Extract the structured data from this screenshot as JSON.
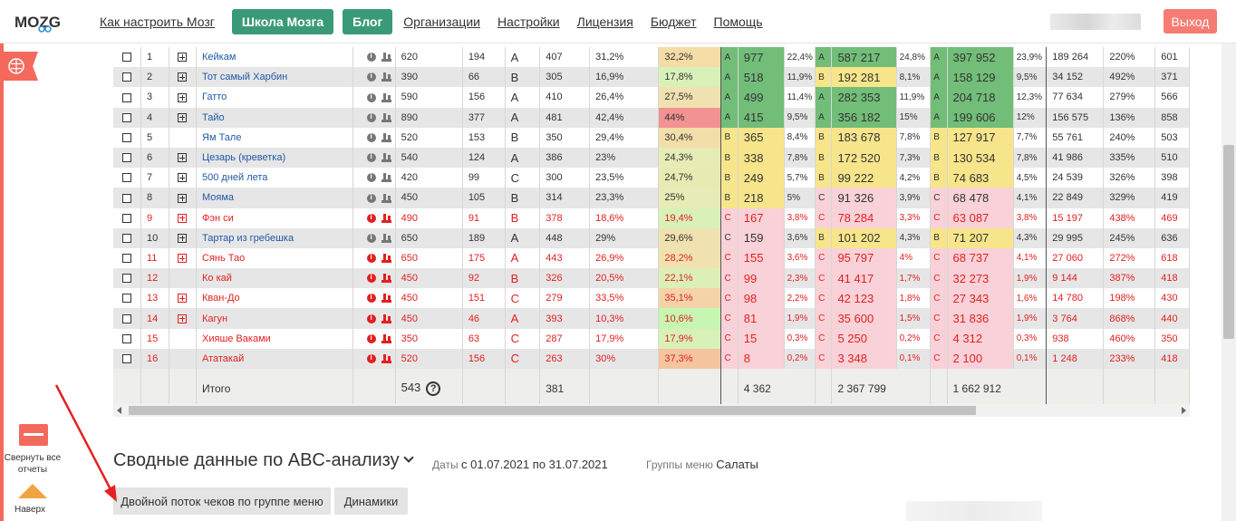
{
  "header": {
    "logo_text": "MOZG",
    "nav": [
      {
        "label": "Как настроить Мозг",
        "style": "link"
      },
      {
        "label": "Школа Мозга",
        "style": "pill"
      },
      {
        "label": "Блог",
        "style": "pill"
      },
      {
        "label": "Организации",
        "style": "link"
      },
      {
        "label": "Настройки",
        "style": "link"
      },
      {
        "label": "Лицензия",
        "style": "link"
      },
      {
        "label": "Бюджет",
        "style": "link"
      },
      {
        "label": "Помощь",
        "style": "link"
      }
    ],
    "logout_label": "Выход",
    "accent_color": "#f47c72",
    "pill_color": "#3a9a78"
  },
  "sidebar": {
    "collapse_label": "Свернуть все отчеты",
    "up_label": "Наверх"
  },
  "table": {
    "rows": [
      {
        "num": "1",
        "plus": true,
        "name": "Кейкам",
        "a": "620",
        "b": "194",
        "cls": "A",
        "c": "407",
        "d": "31,2%",
        "e": "32,2%",
        "eColor": "#f4dca6",
        "g1": "A",
        "v1": "977",
        "p1": "22,4%",
        "g2": "A",
        "v2": "587 217",
        "p2": "24,8%",
        "g3": "A",
        "v3": "397 952",
        "p3": "23,9%",
        "k": "189 264",
        "l": "220%",
        "m": "601",
        "red": false
      },
      {
        "num": "2",
        "plus": true,
        "name": "Тот самый Харбин",
        "a": "390",
        "b": "66",
        "cls": "B",
        "c": "305",
        "d": "16,9%",
        "e": "17,8%",
        "eColor": "#d8f1b8",
        "g1": "A",
        "v1": "518",
        "p1": "11,9%",
        "g2": "B",
        "v2": "192 281",
        "p2": "8,1%",
        "g3": "A",
        "v3": "158 129",
        "p3": "9,5%",
        "k": "34 152",
        "l": "492%",
        "m": "371",
        "red": false
      },
      {
        "num": "3",
        "plus": true,
        "name": "Гатто",
        "a": "590",
        "b": "156",
        "cls": "A",
        "c": "410",
        "d": "26,4%",
        "e": "27,5%",
        "eColor": "#f0e1b0",
        "g1": "A",
        "v1": "499",
        "p1": "11,4%",
        "g2": "A",
        "v2": "282 353",
        "p2": "11,9%",
        "g3": "A",
        "v3": "204 718",
        "p3": "12,3%",
        "k": "77 634",
        "l": "279%",
        "m": "566",
        "red": false
      },
      {
        "num": "4",
        "plus": true,
        "name": "Тайо",
        "a": "890",
        "b": "377",
        "cls": "A",
        "c": "481",
        "d": "42,4%",
        "e": "44%",
        "eColor": "#f39292",
        "g1": "A",
        "v1": "415",
        "p1": "9,5%",
        "g2": "A",
        "v2": "356 182",
        "p2": "15%",
        "g3": "A",
        "v3": "199 606",
        "p3": "12%",
        "k": "156 575",
        "l": "136%",
        "m": "858",
        "red": false
      },
      {
        "num": "5",
        "plus": false,
        "name": "Ям Тале",
        "a": "520",
        "b": "153",
        "cls": "B",
        "c": "350",
        "d": "29,4%",
        "e": "30,4%",
        "eColor": "#f2dea9",
        "g1": "B",
        "v1": "365",
        "p1": "8,4%",
        "g2": "B",
        "v2": "183 678",
        "p2": "7,8%",
        "g3": "B",
        "v3": "127 917",
        "p3": "7,7%",
        "k": "55 761",
        "l": "240%",
        "m": "503",
        "red": false
      },
      {
        "num": "6",
        "plus": true,
        "name": "Цезарь (креветка)",
        "a": "540",
        "b": "124",
        "cls": "A",
        "c": "386",
        "d": "23%",
        "e": "24,3%",
        "eColor": "#e6ecb5",
        "g1": "B",
        "v1": "338",
        "p1": "7,8%",
        "g2": "B",
        "v2": "172 520",
        "p2": "7,3%",
        "g3": "B",
        "v3": "130 534",
        "p3": "7,8%",
        "k": "41 986",
        "l": "335%",
        "m": "510",
        "red": false
      },
      {
        "num": "7",
        "plus": true,
        "name": "500 дней лета",
        "a": "420",
        "b": "99",
        "cls": "C",
        "c": "300",
        "d": "23,5%",
        "e": "24,7%",
        "eColor": "#e8eab3",
        "g1": "B",
        "v1": "249",
        "p1": "5,7%",
        "g2": "B",
        "v2": "99 222",
        "p2": "4,2%",
        "g3": "B",
        "v3": "74 683",
        "p3": "4,5%",
        "k": "24 539",
        "l": "326%",
        "m": "398",
        "red": false
      },
      {
        "num": "8",
        "plus": true,
        "name": "Мояма",
        "a": "450",
        "b": "105",
        "cls": "B",
        "c": "314",
        "d": "23,3%",
        "e": "25%",
        "eColor": "#e6ecb5",
        "g1": "B",
        "v1": "218",
        "p1": "5%",
        "g2": "C",
        "v2": "91 326",
        "p2": "3,9%",
        "g3": "C",
        "v3": "68 478",
        "p3": "4,1%",
        "k": "22 849",
        "l": "329%",
        "m": "419",
        "red": false
      },
      {
        "num": "9",
        "plus": true,
        "name": "Фэн си",
        "a": "490",
        "b": "91",
        "cls": "B",
        "c": "378",
        "d": "18,6%",
        "e": "19,4%",
        "eColor": "#d8f1b8",
        "g1": "C",
        "v1": "167",
        "p1": "3,8%",
        "g2": "C",
        "v2": "78 284",
        "p2": "3,3%",
        "g3": "C",
        "v3": "63 087",
        "p3": "3,8%",
        "k": "15 197",
        "l": "438%",
        "m": "469",
        "red": true
      },
      {
        "num": "10",
        "plus": true,
        "name": "Тартар из гребешка",
        "a": "650",
        "b": "189",
        "cls": "A",
        "c": "448",
        "d": "29%",
        "e": "29,6%",
        "eColor": "#f0e1b0",
        "g1": "C",
        "v1": "159",
        "p1": "3,6%",
        "g2": "B",
        "v2": "101 202",
        "p2": "4,3%",
        "g3": "B",
        "v3": "71 207",
        "p3": "4,3%",
        "k": "29 995",
        "l": "245%",
        "m": "636",
        "red": false
      },
      {
        "num": "11",
        "plus": true,
        "name": "Сянь Тао",
        "a": "650",
        "b": "175",
        "cls": "A",
        "c": "443",
        "d": "26,9%",
        "e": "28,2%",
        "eColor": "#f0e1b0",
        "g1": "C",
        "v1": "155",
        "p1": "3,6%",
        "g2": "C",
        "v2": "95 797",
        "p2": "4%",
        "g3": "C",
        "v3": "68 737",
        "p3": "4,1%",
        "k": "27 060",
        "l": "272%",
        "m": "618",
        "red": true
      },
      {
        "num": "12",
        "plus": false,
        "name": "Ко кай",
        "a": "450",
        "b": "92",
        "cls": "B",
        "c": "326",
        "d": "20,5%",
        "e": "22,1%",
        "eColor": "#dcefb7",
        "g1": "C",
        "v1": "99",
        "p1": "2,3%",
        "g2": "C",
        "v2": "41 417",
        "p2": "1,7%",
        "g3": "C",
        "v3": "32 273",
        "p3": "1,9%",
        "k": "9 144",
        "l": "387%",
        "m": "418",
        "red": true
      },
      {
        "num": "13",
        "plus": true,
        "name": "Кван-До",
        "a": "450",
        "b": "151",
        "cls": "C",
        "c": "279",
        "d": "33,5%",
        "e": "35,1%",
        "eColor": "#f5d3a8",
        "g1": "C",
        "v1": "98",
        "p1": "2,2%",
        "g2": "C",
        "v2": "42 123",
        "p2": "1,8%",
        "g3": "C",
        "v3": "27 343",
        "p3": "1,6%",
        "k": "14 780",
        "l": "198%",
        "m": "430",
        "red": true
      },
      {
        "num": "14",
        "plus": true,
        "name": "Кагун",
        "a": "450",
        "b": "46",
        "cls": "A",
        "c": "393",
        "d": "10,3%",
        "e": "10,6%",
        "eColor": "#c7f5b2",
        "g1": "C",
        "v1": "81",
        "p1": "1,9%",
        "g2": "C",
        "v2": "35 600",
        "p2": "1,5%",
        "g3": "C",
        "v3": "31 836",
        "p3": "1,9%",
        "k": "3 764",
        "l": "868%",
        "m": "440",
        "red": true
      },
      {
        "num": "15",
        "plus": false,
        "name": "Хияше Ваками",
        "a": "350",
        "b": "63",
        "cls": "C",
        "c": "287",
        "d": "17,9%",
        "e": "17,9%",
        "eColor": "#d8f1b8",
        "g1": "C",
        "v1": "15",
        "p1": "0,3%",
        "g2": "C",
        "v2": "5 250",
        "p2": "0,2%",
        "g3": "C",
        "v3": "4 312",
        "p3": "0,3%",
        "k": "938",
        "l": "460%",
        "m": "350",
        "red": true
      },
      {
        "num": "16",
        "plus": false,
        "name": "Ататакай",
        "a": "520",
        "b": "156",
        "cls": "C",
        "c": "263",
        "d": "30%",
        "e": "37,3%",
        "eColor": "#f5c5a0",
        "g1": "C",
        "v1": "8",
        "p1": "0,2%",
        "g2": "C",
        "v2": "3 348",
        "p2": "0,1%",
        "g3": "C",
        "v3": "2 100",
        "p3": "0,1%",
        "k": "1 248",
        "l": "233%",
        "m": "418",
        "red": true
      }
    ],
    "total": {
      "label": "Итого",
      "a": "543",
      "c": "381",
      "v1": "4 362",
      "v2": "2 367 799",
      "v3": "1 662 912"
    },
    "grade_colors": {
      "A": "#72be78",
      "B": "#f7e58b",
      "C": "#f8d2d8"
    }
  },
  "summary": {
    "title": "Сводные данные по ABC-анализу",
    "dates_prefix": "Даты",
    "dates_value": "с 01.07.2021 по 31.07.2021",
    "groups_prefix": "Группы меню",
    "groups_value": "Салаты",
    "tabs": [
      "Двойной поток чеков по группе меню",
      "Динамики"
    ]
  }
}
